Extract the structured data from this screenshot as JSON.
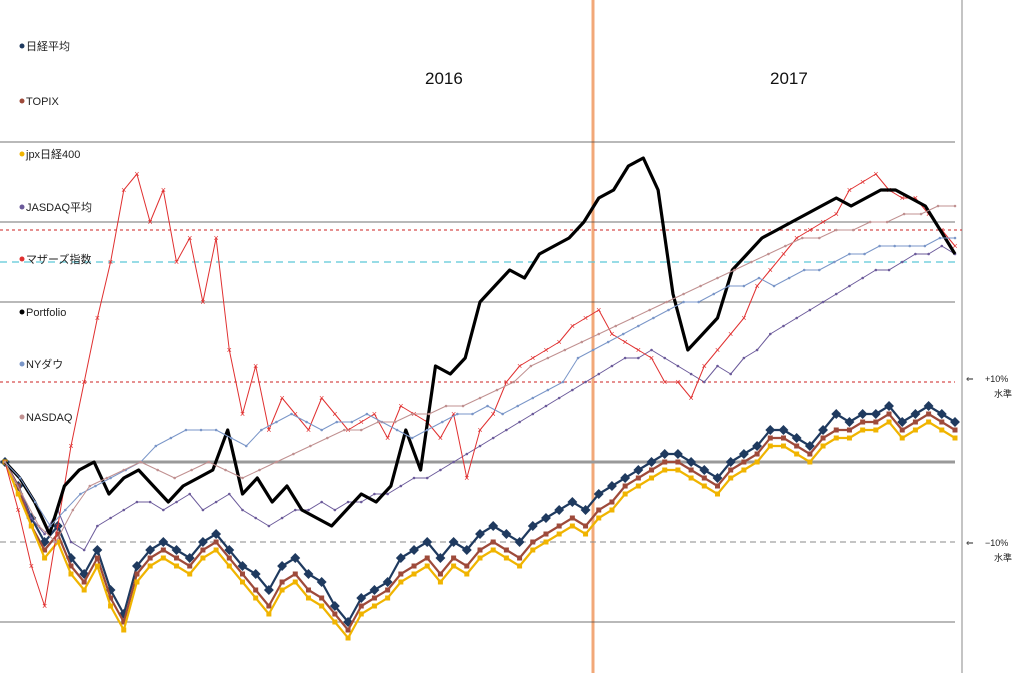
{
  "chart_data": {
    "type": "line",
    "title": "",
    "xlabel": "",
    "ylabel": "",
    "year_labels": [
      "2016",
      "2017"
    ],
    "reference_lines": [
      {
        "label": "+10%",
        "sub": "水準",
        "arrow": "⇐",
        "value": 10,
        "color": "#cc2222",
        "style": "dotted"
      },
      {
        "label": "−10%",
        "sub": "水準",
        "arrow": "⇐",
        "value": -10,
        "color": "#888888",
        "style": "dashed"
      }
    ],
    "ylim": [
      -27,
      43
    ],
    "series": [
      {
        "name": "日経平均",
        "color": "#1f3a5f",
        "marker": "◆",
        "values": [
          0,
          -3,
          -7,
          -10,
          -8,
          -12,
          -14,
          -11,
          -16,
          -19,
          -13,
          -11,
          -10,
          -11,
          -12,
          -10,
          -9,
          -11,
          -13,
          -14,
          -16,
          -13,
          -12,
          -14,
          -15,
          -18,
          -20,
          -17,
          -16,
          -15,
          -12,
          -11,
          -10,
          -12,
          -10,
          -11,
          -9,
          -8,
          -9,
          -10,
          -8,
          -7,
          -6,
          -5,
          -6,
          -4,
          -3,
          -2,
          -1,
          0,
          1,
          1,
          0,
          -1,
          -2,
          0,
          1,
          2,
          4,
          4,
          3,
          2,
          4,
          6,
          5,
          6,
          6,
          7,
          5,
          6,
          7,
          6,
          5
        ]
      },
      {
        "name": "TOPIX",
        "color": "#9e4a3a",
        "marker": "■",
        "values": [
          0,
          -3,
          -8,
          -11,
          -9,
          -13,
          -15,
          -12,
          -17,
          -20,
          -14,
          -12,
          -11,
          -12,
          -13,
          -11,
          -10,
          -12,
          -14,
          -16,
          -18,
          -15,
          -14,
          -16,
          -17,
          -19,
          -21,
          -18,
          -17,
          -16,
          -14,
          -13,
          -12,
          -14,
          -12,
          -13,
          -11,
          -10,
          -11,
          -12,
          -10,
          -9,
          -8,
          -7,
          -8,
          -6,
          -5,
          -3,
          -2,
          -1,
          0,
          0,
          -1,
          -2,
          -3,
          -1,
          0,
          1,
          3,
          3,
          2,
          1,
          3,
          4,
          4,
          5,
          5,
          6,
          4,
          5,
          6,
          5,
          4
        ]
      },
      {
        "name": "jpx日経400",
        "color": "#f0b400",
        "marker": "●",
        "values": [
          0,
          -4,
          -8,
          -12,
          -10,
          -14,
          -16,
          -13,
          -18,
          -21,
          -15,
          -13,
          -12,
          -13,
          -14,
          -12,
          -11,
          -13,
          -15,
          -17,
          -19,
          -16,
          -15,
          -17,
          -18,
          -20,
          -22,
          -19,
          -18,
          -17,
          -15,
          -14,
          -13,
          -15,
          -13,
          -14,
          -12,
          -11,
          -12,
          -13,
          -11,
          -10,
          -9,
          -8,
          -9,
          -7,
          -6,
          -4,
          -3,
          -2,
          -1,
          -1,
          -2,
          -3,
          -4,
          -2,
          -1,
          0,
          2,
          2,
          1,
          0,
          2,
          3,
          3,
          4,
          4,
          5,
          3,
          4,
          5,
          4,
          3
        ]
      },
      {
        "name": "JASDAQ平均",
        "color": "#6b5a9a",
        "marker": "×",
        "values": [
          0,
          -3,
          -7,
          -9,
          -6,
          -10,
          -11,
          -8,
          -7,
          -6,
          -5,
          -5,
          -6,
          -5,
          -4,
          -6,
          -5,
          -4,
          -6,
          -7,
          -8,
          -7,
          -6,
          -6,
          -5,
          -6,
          -5,
          -5,
          -4,
          -4,
          -3,
          -2,
          -2,
          -1,
          0,
          1,
          2,
          3,
          4,
          5,
          6,
          7,
          8,
          9,
          10,
          11,
          12,
          13,
          13,
          14,
          13,
          12,
          11,
          10,
          12,
          11,
          13,
          14,
          16,
          17,
          18,
          19,
          20,
          21,
          22,
          23,
          24,
          24,
          25,
          26,
          26,
          27,
          26
        ]
      },
      {
        "name": "マザーズ指数",
        "color": "#e03030",
        "marker": "＊",
        "values": [
          0,
          -6,
          -13,
          -18,
          -8,
          2,
          10,
          18,
          25,
          34,
          36,
          30,
          34,
          25,
          28,
          20,
          28,
          14,
          6,
          12,
          4,
          8,
          6,
          4,
          8,
          6,
          4,
          5,
          6,
          3,
          7,
          6,
          5,
          3,
          6,
          -2,
          4,
          6,
          10,
          12,
          13,
          14,
          15,
          17,
          18,
          19,
          16,
          15,
          14,
          13,
          10,
          10,
          8,
          12,
          14,
          16,
          18,
          22,
          24,
          26,
          28,
          29,
          30,
          31,
          34,
          35,
          36,
          34,
          33,
          33,
          31,
          29,
          27
        ]
      },
      {
        "name": "Portfolio",
        "color": "#000000",
        "marker": "▬",
        "values": [
          0,
          -2,
          -5,
          -9,
          -3,
          -1,
          0,
          -4,
          -2,
          -1,
          -3,
          -5,
          -3,
          -2,
          -1,
          4,
          -4,
          -2,
          -5,
          -3,
          -6,
          -7,
          -8,
          -6,
          -4,
          -5,
          -3,
          4,
          -1,
          12,
          11,
          13,
          20,
          22,
          24,
          23,
          26,
          27,
          28,
          30,
          33,
          34,
          37,
          38,
          34,
          21,
          14,
          16,
          18,
          24,
          26,
          28,
          29,
          30,
          31,
          32,
          33,
          32,
          33,
          34,
          34,
          33,
          32,
          29,
          26
        ]
      },
      {
        "name": "NYダウ",
        "color": "#7a96c8",
        "marker": "+",
        "values": [
          0,
          -2,
          -5,
          -8,
          -6,
          -4,
          -3,
          -2,
          -1,
          0,
          2,
          3,
          4,
          4,
          4,
          3,
          2,
          4,
          5,
          6,
          5,
          4,
          5,
          5,
          6,
          5,
          4,
          3,
          4,
          5,
          6,
          6,
          7,
          6,
          7,
          8,
          9,
          10,
          13,
          14,
          15,
          16,
          17,
          18,
          19,
          20,
          20,
          21,
          22,
          22,
          23,
          22,
          23,
          24,
          24,
          25,
          26,
          26,
          27,
          27,
          27,
          27,
          28,
          28
        ]
      },
      {
        "name": "NASDAQ",
        "color": "#c09090",
        "marker": "−",
        "values": [
          0,
          -4,
          -8,
          -10,
          -6,
          -3,
          -2,
          -1,
          0,
          -1,
          -2,
          -1,
          0,
          -1,
          -2,
          -1,
          0,
          1,
          2,
          3,
          4,
          4,
          5,
          5,
          6,
          6,
          7,
          7,
          8,
          9,
          10,
          12,
          13,
          14,
          15,
          16,
          17,
          18,
          19,
          20,
          21,
          22,
          23,
          24,
          25,
          26,
          27,
          28,
          28,
          29,
          29,
          30,
          30,
          31,
          31,
          32,
          32
        ]
      }
    ],
    "grid": true,
    "legend_position": "left"
  }
}
